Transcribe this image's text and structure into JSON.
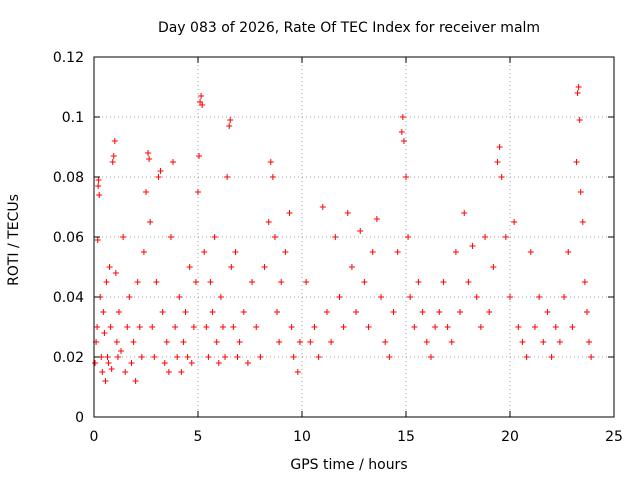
{
  "chart_data": {
    "type": "scatter",
    "title": "Day 083 of 2026, Rate Of TEC Index for receiver malm",
    "xlabel": "GPS time / hours",
    "ylabel": "ROTI / TECUs",
    "xlim": [
      0,
      25
    ],
    "ylim": [
      0,
      0.12
    ],
    "x_ticks": [
      0,
      5,
      10,
      15,
      20,
      25
    ],
    "y_ticks": [
      0,
      0.02,
      0.04,
      0.06,
      0.08,
      0.1,
      0.12
    ],
    "x_tick_labels": [
      "0",
      "5",
      "10",
      "15",
      "20",
      "25"
    ],
    "y_tick_labels": [
      "0",
      "0.02",
      "0.04",
      "0.06",
      "0.08",
      "0.1",
      "0.12"
    ],
    "grid": true,
    "marker": "+",
    "color": "#ff0000",
    "series": [
      {
        "points": [
          [
            0.05,
            0.018
          ],
          [
            0.1,
            0.025
          ],
          [
            0.15,
            0.03
          ],
          [
            0.2,
            0.077
          ],
          [
            0.22,
            0.079
          ],
          [
            0.25,
            0.074
          ],
          [
            0.18,
            0.059
          ],
          [
            0.3,
            0.04
          ],
          [
            0.35,
            0.02
          ],
          [
            0.4,
            0.015
          ],
          [
            0.45,
            0.035
          ],
          [
            0.5,
            0.028
          ],
          [
            0.55,
            0.012
          ],
          [
            0.6,
            0.045
          ],
          [
            0.65,
            0.02
          ],
          [
            0.7,
            0.018
          ],
          [
            0.75,
            0.05
          ],
          [
            0.8,
            0.03
          ],
          [
            0.85,
            0.016
          ],
          [
            0.9,
            0.085
          ],
          [
            0.95,
            0.087
          ],
          [
            1.0,
            0.092
          ],
          [
            1.05,
            0.048
          ],
          [
            1.1,
            0.025
          ],
          [
            1.15,
            0.02
          ],
          [
            1.2,
            0.035
          ],
          [
            1.3,
            0.022
          ],
          [
            1.4,
            0.06
          ],
          [
            1.5,
            0.015
          ],
          [
            1.6,
            0.03
          ],
          [
            1.7,
            0.04
          ],
          [
            1.8,
            0.018
          ],
          [
            1.9,
            0.025
          ],
          [
            2.0,
            0.012
          ],
          [
            2.1,
            0.045
          ],
          [
            2.2,
            0.03
          ],
          [
            2.3,
            0.02
          ],
          [
            2.4,
            0.055
          ],
          [
            2.5,
            0.075
          ],
          [
            2.6,
            0.088
          ],
          [
            2.65,
            0.086
          ],
          [
            2.7,
            0.065
          ],
          [
            2.8,
            0.03
          ],
          [
            2.9,
            0.02
          ],
          [
            3.0,
            0.045
          ],
          [
            3.1,
            0.08
          ],
          [
            3.2,
            0.082
          ],
          [
            3.3,
            0.035
          ],
          [
            3.4,
            0.018
          ],
          [
            3.5,
            0.025
          ],
          [
            3.6,
            0.015
          ],
          [
            3.7,
            0.06
          ],
          [
            3.8,
            0.085
          ],
          [
            3.9,
            0.03
          ],
          [
            4.0,
            0.02
          ],
          [
            4.1,
            0.04
          ],
          [
            4.2,
            0.015
          ],
          [
            4.3,
            0.025
          ],
          [
            4.4,
            0.035
          ],
          [
            4.5,
            0.02
          ],
          [
            4.6,
            0.05
          ],
          [
            4.7,
            0.018
          ],
          [
            4.8,
            0.03
          ],
          [
            4.9,
            0.045
          ],
          [
            5.0,
            0.075
          ],
          [
            5.1,
            0.105
          ],
          [
            5.15,
            0.107
          ],
          [
            5.2,
            0.104
          ],
          [
            5.05,
            0.087
          ],
          [
            5.3,
            0.055
          ],
          [
            5.4,
            0.03
          ],
          [
            5.5,
            0.02
          ],
          [
            5.6,
            0.045
          ],
          [
            5.7,
            0.035
          ],
          [
            5.8,
            0.06
          ],
          [
            5.9,
            0.025
          ],
          [
            6.0,
            0.018
          ],
          [
            6.1,
            0.04
          ],
          [
            6.2,
            0.03
          ],
          [
            6.3,
            0.02
          ],
          [
            6.4,
            0.08
          ],
          [
            6.5,
            0.097
          ],
          [
            6.55,
            0.099
          ],
          [
            6.6,
            0.05
          ],
          [
            6.7,
            0.03
          ],
          [
            6.8,
            0.055
          ],
          [
            6.9,
            0.02
          ],
          [
            7.0,
            0.025
          ],
          [
            7.2,
            0.035
          ],
          [
            7.4,
            0.018
          ],
          [
            7.6,
            0.045
          ],
          [
            7.8,
            0.03
          ],
          [
            8.0,
            0.02
          ],
          [
            8.2,
            0.05
          ],
          [
            8.4,
            0.065
          ],
          [
            8.5,
            0.085
          ],
          [
            8.6,
            0.08
          ],
          [
            8.7,
            0.06
          ],
          [
            8.8,
            0.035
          ],
          [
            8.9,
            0.025
          ],
          [
            9.0,
            0.045
          ],
          [
            9.2,
            0.055
          ],
          [
            9.4,
            0.068
          ],
          [
            9.5,
            0.03
          ],
          [
            9.6,
            0.02
          ],
          [
            9.8,
            0.015
          ],
          [
            9.9,
            0.025
          ],
          [
            10.2,
            0.045
          ],
          [
            10.4,
            0.025
          ],
          [
            10.6,
            0.03
          ],
          [
            10.8,
            0.02
          ],
          [
            11.0,
            0.07
          ],
          [
            11.2,
            0.035
          ],
          [
            11.4,
            0.025
          ],
          [
            11.6,
            0.06
          ],
          [
            11.8,
            0.04
          ],
          [
            12.0,
            0.03
          ],
          [
            12.2,
            0.068
          ],
          [
            12.4,
            0.05
          ],
          [
            12.6,
            0.035
          ],
          [
            12.8,
            0.062
          ],
          [
            13.0,
            0.045
          ],
          [
            13.2,
            0.03
          ],
          [
            13.4,
            0.055
          ],
          [
            13.6,
            0.066
          ],
          [
            13.8,
            0.04
          ],
          [
            14.0,
            0.025
          ],
          [
            14.2,
            0.02
          ],
          [
            14.4,
            0.035
          ],
          [
            14.6,
            0.055
          ],
          [
            14.8,
            0.095
          ],
          [
            14.85,
            0.1
          ],
          [
            14.9,
            0.092
          ],
          [
            15.0,
            0.08
          ],
          [
            15.1,
            0.06
          ],
          [
            15.2,
            0.04
          ],
          [
            15.4,
            0.03
          ],
          [
            15.6,
            0.045
          ],
          [
            15.8,
            0.035
          ],
          [
            16.0,
            0.025
          ],
          [
            16.2,
            0.02
          ],
          [
            16.4,
            0.03
          ],
          [
            16.6,
            0.035
          ],
          [
            16.8,
            0.045
          ],
          [
            17.0,
            0.03
          ],
          [
            17.2,
            0.025
          ],
          [
            17.4,
            0.055
          ],
          [
            17.6,
            0.035
          ],
          [
            17.8,
            0.068
          ],
          [
            18.0,
            0.045
          ],
          [
            18.2,
            0.057
          ],
          [
            18.4,
            0.04
          ],
          [
            18.6,
            0.03
          ],
          [
            18.8,
            0.06
          ],
          [
            19.0,
            0.035
          ],
          [
            19.2,
            0.05
          ],
          [
            19.4,
            0.085
          ],
          [
            19.5,
            0.09
          ],
          [
            19.6,
            0.08
          ],
          [
            19.8,
            0.06
          ],
          [
            20.0,
            0.04
          ],
          [
            20.2,
            0.065
          ],
          [
            20.4,
            0.03
          ],
          [
            20.6,
            0.025
          ],
          [
            20.8,
            0.02
          ],
          [
            21.0,
            0.055
          ],
          [
            21.2,
            0.03
          ],
          [
            21.4,
            0.04
          ],
          [
            21.6,
            0.025
          ],
          [
            21.8,
            0.035
          ],
          [
            22.0,
            0.02
          ],
          [
            22.2,
            0.03
          ],
          [
            22.4,
            0.025
          ],
          [
            22.6,
            0.04
          ],
          [
            22.8,
            0.055
          ],
          [
            23.0,
            0.03
          ],
          [
            23.2,
            0.085
          ],
          [
            23.25,
            0.108
          ],
          [
            23.3,
            0.11
          ],
          [
            23.35,
            0.099
          ],
          [
            23.4,
            0.075
          ],
          [
            23.5,
            0.065
          ],
          [
            23.6,
            0.045
          ],
          [
            23.7,
            0.035
          ],
          [
            23.8,
            0.025
          ],
          [
            23.9,
            0.02
          ]
        ]
      }
    ]
  }
}
